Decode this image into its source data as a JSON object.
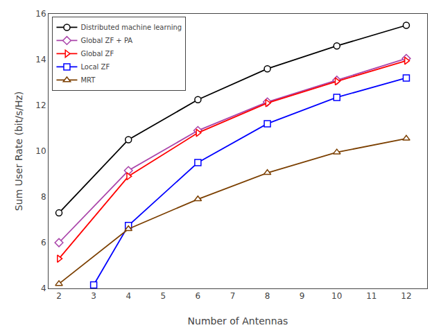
{
  "chart_data": {
    "type": "line",
    "x": [
      2,
      3,
      4,
      6,
      8,
      10,
      12
    ],
    "series": [
      {
        "name": "Distributed machine learning",
        "color": "black",
        "marker": "circle",
        "values": [
          7.3,
          null,
          10.5,
          12.25,
          13.6,
          14.6,
          15.5
        ]
      },
      {
        "name": "Global ZF + PA",
        "color": "#AA44AA",
        "marker": "diamond",
        "values": [
          6.0,
          null,
          9.15,
          10.9,
          12.15,
          13.1,
          14.05
        ]
      },
      {
        "name": "Global ZF",
        "color": "red",
        "marker": "triangle-right",
        "values": [
          5.3,
          null,
          8.9,
          10.8,
          12.1,
          13.05,
          13.95
        ]
      },
      {
        "name": "Local ZF",
        "color": "blue",
        "marker": "square",
        "values": [
          null,
          4.15,
          6.75,
          9.5,
          11.2,
          12.35,
          13.2
        ]
      },
      {
        "name": "MRT",
        "color": "#7B3F00",
        "marker": "triangle-up",
        "values": [
          4.2,
          null,
          6.6,
          7.9,
          9.05,
          9.95,
          10.55
        ]
      }
    ],
    "xlabel": "Number of Antennas",
    "ylabel": "Sum User Rate (bit/s/Hz)",
    "xlim": [
      1.7,
      12.6
    ],
    "ylim": [
      4,
      16
    ],
    "xticks": [
      2,
      3,
      4,
      5,
      6,
      7,
      8,
      9,
      10,
      11,
      12
    ],
    "yticks": [
      4,
      6,
      8,
      10,
      12,
      14,
      16
    ],
    "grid": false,
    "legend": "upper left"
  }
}
